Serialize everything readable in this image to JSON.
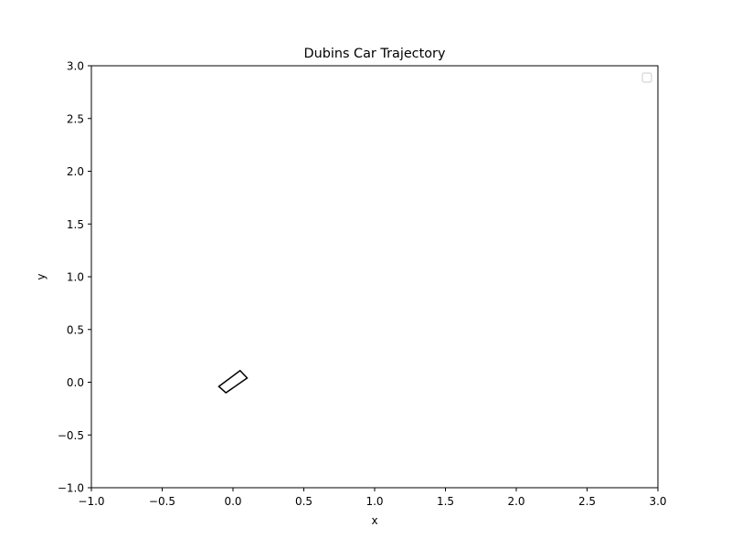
{
  "chart_data": {
    "type": "line",
    "title": "Dubins Car Trajectory",
    "xlabel": "x",
    "ylabel": "y",
    "xlim": [
      -1.0,
      3.0
    ],
    "ylim": [
      -1.0,
      3.0
    ],
    "grid": false,
    "legend": {
      "placement": "upper-right",
      "entries": []
    },
    "x_ticks": [
      -1.0,
      -0.5,
      0.0,
      0.5,
      1.0,
      1.5,
      2.0,
      2.5,
      3.0
    ],
    "x_tick_labels": [
      "−1.0",
      "−0.5",
      "0.0",
      "0.5",
      "1.0",
      "1.5",
      "2.0",
      "2.5",
      "3.0"
    ],
    "y_ticks": [
      -1.0,
      -0.5,
      0.0,
      0.5,
      1.0,
      1.5,
      2.0,
      2.5,
      3.0
    ],
    "y_tick_labels": [
      "−1.0",
      "−0.5",
      "0.0",
      "0.5",
      "1.0",
      "1.5",
      "2.0",
      "2.5",
      "3.0"
    ],
    "series": [
      {
        "color": "#000000",
        "closed": true,
        "x": [
          -0.1,
          0.05,
          0.1,
          -0.05
        ],
        "y": [
          -0.04,
          0.11,
          0.04,
          -0.1
        ]
      }
    ]
  }
}
